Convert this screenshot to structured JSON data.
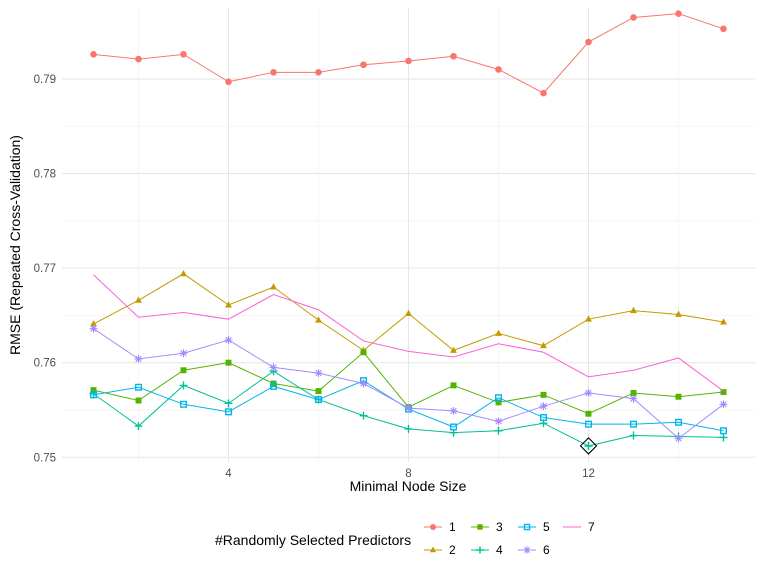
{
  "chart_data": {
    "type": "line",
    "xlabel": "Minimal Node Size",
    "ylabel": "RMSE (Repeated Cross-Validation)",
    "x": [
      1,
      2,
      3,
      4,
      5,
      6,
      7,
      8,
      9,
      10,
      11,
      12,
      13,
      14,
      15
    ],
    "xlim": [
      0.3,
      15.7
    ],
    "ylim": [
      0.7495,
      0.7975
    ],
    "x_ticks": [
      4,
      8,
      12
    ],
    "y_ticks": [
      0.75,
      0.76,
      0.77,
      0.78,
      0.79
    ],
    "x_tick_labels": [
      "4",
      "8",
      "12"
    ],
    "y_tick_labels": [
      "0.75",
      "0.76",
      "0.77",
      "0.78",
      "0.79"
    ],
    "grid": true,
    "legend": {
      "title": "#Randomly Selected Predictors",
      "position": "bottom"
    },
    "highlight": {
      "series": "4",
      "x": 12,
      "y": 0.7512,
      "marker": "diamond"
    },
    "series": [
      {
        "name": "1",
        "color": "#F8766D",
        "marker": "circle",
        "values": [
          0.7926,
          0.7921,
          0.7926,
          0.7897,
          0.7907,
          0.7907,
          0.7915,
          0.7919,
          0.7924,
          0.791,
          0.7885,
          0.7939,
          0.7965,
          0.7969,
          0.7953
        ]
      },
      {
        "name": "2",
        "color": "#C49A00",
        "marker": "triangle",
        "values": [
          0.7641,
          0.7666,
          0.7694,
          0.7661,
          0.768,
          0.7645,
          0.7613,
          0.7652,
          0.7613,
          0.7631,
          0.7618,
          0.7646,
          0.7655,
          0.7651,
          0.7643
        ]
      },
      {
        "name": "3",
        "color": "#53B400",
        "marker": "square",
        "values": [
          0.7571,
          0.756,
          0.7592,
          0.76,
          0.7578,
          0.757,
          0.7611,
          0.7553,
          0.7576,
          0.7558,
          0.7566,
          0.7546,
          0.7568,
          0.7564,
          0.7569
        ]
      },
      {
        "name": "4",
        "color": "#00C094",
        "marker": "plus",
        "values": [
          0.7567,
          0.7533,
          0.7576,
          0.7557,
          0.7591,
          0.7561,
          0.7544,
          0.753,
          0.7526,
          0.7528,
          0.7536,
          0.7512,
          0.7523,
          0.7522,
          0.7521
        ]
      },
      {
        "name": "5",
        "color": "#00B6EB",
        "marker": "square-open",
        "values": [
          0.7566,
          0.7574,
          0.7556,
          0.7548,
          0.7575,
          0.7561,
          0.7581,
          0.7551,
          0.7532,
          0.7563,
          0.7542,
          0.7535,
          0.7535,
          0.7537,
          0.7528
        ]
      },
      {
        "name": "6",
        "color": "#A58AFF",
        "marker": "asterisk",
        "values": [
          0.7636,
          0.7604,
          0.761,
          0.7624,
          0.7595,
          0.7589,
          0.7578,
          0.7552,
          0.7549,
          0.7538,
          0.7554,
          0.7568,
          0.7562,
          0.752,
          0.7556
        ]
      },
      {
        "name": "7",
        "color": "#FB61D7",
        "marker": "none",
        "values": [
          0.7693,
          0.7648,
          0.7653,
          0.7646,
          0.7672,
          0.7656,
          0.7623,
          0.7612,
          0.7606,
          0.762,
          0.7611,
          0.7585,
          0.7592,
          0.7605,
          0.757
        ]
      }
    ]
  }
}
